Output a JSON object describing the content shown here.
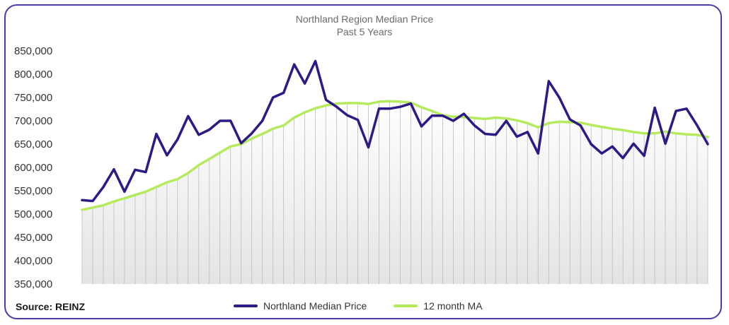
{
  "chart_data": {
    "type": "line",
    "title": "Northland  Region Median Price",
    "subtitle": "Past 5 Years",
    "xlabel": "",
    "ylabel": "",
    "ylim": [
      350000,
      850000
    ],
    "y_ticks": [
      "350,000",
      "400,000",
      "450,000",
      "500,000",
      "550,000",
      "600,000",
      "650,000",
      "700,000",
      "750,000",
      "800,000",
      "850,000"
    ],
    "y_tick_values": [
      350000,
      400000,
      450000,
      500000,
      550000,
      600000,
      650000,
      700000,
      750000,
      800000,
      850000
    ],
    "grid": "vertical lines at each month",
    "legend": "bottom-center",
    "series": [
      {
        "name": "Northland Median Price",
        "color": "#2e1a87",
        "values": [
          530000,
          528000,
          558000,
          596000,
          548000,
          595000,
          590000,
          672000,
          626000,
          660000,
          710000,
          670000,
          681000,
          700000,
          700000,
          652000,
          673000,
          700000,
          750000,
          760000,
          821000,
          780000,
          828000,
          745000,
          730000,
          712000,
          702000,
          643000,
          726000,
          726000,
          730000,
          737000,
          688000,
          711000,
          711000,
          700000,
          715000,
          690000,
          672000,
          670000,
          700000,
          666000,
          676000,
          630000,
          785000,
          750000,
          703000,
          690000,
          650000,
          630000,
          645000,
          620000,
          651000,
          625000,
          728000,
          651000,
          721000,
          726000,
          690000,
          650000
        ]
      },
      {
        "name": "12 month MA",
        "color": "#b5ea5d",
        "values": [
          509000,
          514000,
          519000,
          527000,
          534000,
          541000,
          548000,
          558000,
          568000,
          575000,
          588000,
          605000,
          618000,
          632000,
          645000,
          650000,
          662000,
          672000,
          683000,
          690000,
          707000,
          718000,
          727000,
          733000,
          737000,
          738000,
          738000,
          736000,
          741000,
          742000,
          741000,
          739000,
          729000,
          721000,
          712000,
          709000,
          708000,
          706000,
          704000,
          707000,
          705000,
          701000,
          695000,
          686000,
          695000,
          698000,
          697000,
          696000,
          691000,
          687000,
          683000,
          680000,
          676000,
          673000,
          673000,
          677000,
          673000,
          671000,
          670000,
          665000
        ]
      }
    ]
  },
  "source_label": "Source: REINZ",
  "colors": {
    "frame": "#4a3aa8",
    "shade": "#e8e8e8",
    "grid": "#bdbdbd"
  }
}
